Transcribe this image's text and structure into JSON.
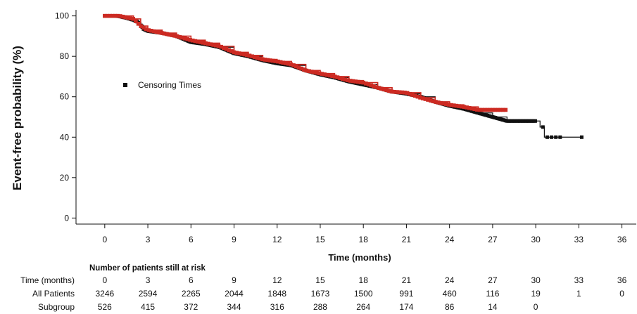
{
  "chart_data": {
    "type": "line",
    "subtype": "kaplan-meier",
    "xlabel": "Time (months)",
    "ylabel": "Event-free probability (%)",
    "xlim": [
      -2,
      37
    ],
    "ylim": [
      -3,
      103
    ],
    "x_ticks": [
      0,
      3,
      6,
      9,
      12,
      15,
      18,
      21,
      24,
      27,
      30,
      33,
      36
    ],
    "y_ticks": [
      0,
      20,
      40,
      60,
      80,
      100
    ],
    "grid": false,
    "legend": {
      "position": "upper-left",
      "entries": [
        "Censoring Times"
      ]
    },
    "series": [
      {
        "name": "All Patients",
        "color": "#111111",
        "points": [
          [
            0,
            100
          ],
          [
            0.5,
            100
          ],
          [
            1,
            99.8
          ],
          [
            1.5,
            99
          ],
          [
            2,
            98
          ],
          [
            2.3,
            97
          ],
          [
            2.5,
            95.5
          ],
          [
            2.7,
            93.5
          ],
          [
            3,
            92.5
          ],
          [
            4,
            91.5
          ],
          [
            5,
            90
          ],
          [
            5.5,
            88.5
          ],
          [
            6,
            87
          ],
          [
            7,
            86
          ],
          [
            8,
            84.5
          ],
          [
            9,
            81.5
          ],
          [
            10,
            80
          ],
          [
            11,
            78
          ],
          [
            12,
            76.5
          ],
          [
            13,
            75.5
          ],
          [
            14,
            73
          ],
          [
            15,
            71
          ],
          [
            16,
            69.5
          ],
          [
            17,
            67.5
          ],
          [
            18,
            66
          ],
          [
            19,
            64.5
          ],
          [
            20,
            62.5
          ],
          [
            21,
            61.5
          ],
          [
            22,
            60
          ],
          [
            23,
            57.5
          ],
          [
            24,
            55.5
          ],
          [
            25,
            54
          ],
          [
            26,
            52
          ],
          [
            27,
            50
          ],
          [
            28,
            48
          ],
          [
            30,
            48
          ],
          [
            30.3,
            45
          ],
          [
            30.6,
            45
          ],
          [
            30.6,
            40
          ],
          [
            31,
            40
          ],
          [
            33.2,
            40
          ]
        ]
      },
      {
        "name": "Subgroup",
        "color": "#cc2a22",
        "points": [
          [
            0,
            100
          ],
          [
            1,
            100
          ],
          [
            2,
            98.5
          ],
          [
            2.5,
            95
          ],
          [
            3,
            93
          ],
          [
            4,
            91.5
          ],
          [
            5,
            90
          ],
          [
            6,
            88
          ],
          [
            7,
            86.5
          ],
          [
            8,
            85
          ],
          [
            9,
            82
          ],
          [
            10,
            80.5
          ],
          [
            11,
            78.5
          ],
          [
            12,
            77.5
          ],
          [
            13,
            76
          ],
          [
            14,
            73
          ],
          [
            15,
            71.5
          ],
          [
            16,
            70
          ],
          [
            17,
            68
          ],
          [
            18,
            67
          ],
          [
            19,
            64.5
          ],
          [
            20,
            62.5
          ],
          [
            21,
            62
          ],
          [
            22,
            59.5
          ],
          [
            23,
            57.5
          ],
          [
            24,
            56
          ],
          [
            25,
            55
          ],
          [
            26,
            53.5
          ],
          [
            27,
            53.5
          ],
          [
            28,
            53.5
          ]
        ]
      }
    ]
  },
  "risk_table": {
    "heading": "Number of patients still at risk",
    "rows": [
      {
        "label": "Time (months)",
        "values": [
          "0",
          "3",
          "6",
          "9",
          "12",
          "15",
          "18",
          "21",
          "24",
          "27",
          "30",
          "33",
          "36"
        ]
      },
      {
        "label": "All Patients",
        "values": [
          "3246",
          "2594",
          "2265",
          "2044",
          "1848",
          "1673",
          "1500",
          "991",
          "460",
          "116",
          "19",
          "1",
          "0"
        ]
      },
      {
        "label": "Subgroup",
        "values": [
          "526",
          "415",
          "372",
          "344",
          "316",
          "288",
          "264",
          "174",
          "86",
          "14",
          "0"
        ]
      }
    ]
  }
}
